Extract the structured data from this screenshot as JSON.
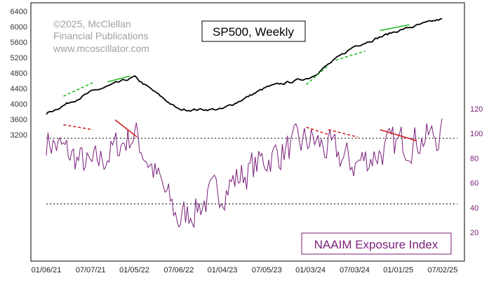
{
  "chart_data": [
    {
      "type": "line",
      "title": "SP500, Weekly",
      "axis": "left",
      "ylim": [
        3400,
        6400
      ],
      "y_ticks": [
        "6400",
        "6000",
        "5600",
        "5200",
        "4800",
        "4400",
        "4000",
        "3600",
        "3200"
      ],
      "color": "#000000",
      "x": [
        "01/06/21",
        "07/07/21",
        "01/05/22",
        "07/06/22",
        "01/04/23",
        "07/05/23",
        "01/03/24",
        "07/03/24",
        "01/01/25",
        "07/02/25"
      ],
      "values": [
        3750,
        4300,
        4690,
        3850,
        3860,
        4430,
        4690,
        5500,
        5900,
        6200
      ],
      "divergence_lines": [
        {
          "color": "#22bb22",
          "dashed": true,
          "from": [
            "03/2021",
            4200
          ],
          "to": [
            "07/2021",
            4550
          ]
        },
        {
          "color": "#22bb22",
          "dashed": false,
          "from": [
            "09/2021",
            4570
          ],
          "to": [
            "12/2021",
            4720
          ]
        },
        {
          "color": "#22bb22",
          "dashed": true,
          "from": [
            "12/2023",
            4500
          ],
          "to": [
            "03/2024",
            5000
          ]
        },
        {
          "color": "#22bb22",
          "dashed": true,
          "from": [
            "04/2024",
            5130
          ],
          "to": [
            "08/2024",
            5370
          ]
        },
        {
          "color": "#22bb22",
          "dashed": false,
          "from": [
            "10/2024",
            5900
          ],
          "to": [
            "02/2025",
            6050
          ]
        }
      ]
    },
    {
      "type": "line",
      "title": "NAAIM Exposure Index",
      "axis": "right",
      "ylim": [
        0,
        122
      ],
      "y_ticks": [
        "120",
        "100",
        "80",
        "60",
        "40",
        "20"
      ],
      "color": "#7a1f7a",
      "x": [
        "01/06/21",
        "07/07/21",
        "01/05/22",
        "07/06/22",
        "01/04/23",
        "07/05/23",
        "01/03/24",
        "07/03/24",
        "01/01/25",
        "07/02/25"
      ],
      "values": [
        95,
        72,
        100,
        30,
        55,
        80,
        95,
        75,
        92,
        99
      ],
      "reference_lines": [
        {
          "value": 96,
          "style": "dotted"
        },
        {
          "value": 43,
          "style": "dotted"
        }
      ],
      "divergence_lines": [
        {
          "color": "#cc2222",
          "dashed": true,
          "from": [
            "03/2021",
            107
          ],
          "to": [
            "07/2021",
            103
          ]
        },
        {
          "color": "#cc2222",
          "dashed": false,
          "from": [
            "10/2021",
            111
          ],
          "to": [
            "01/2022",
            97
          ]
        },
        {
          "color": "#cc2222",
          "dashed": true,
          "from": [
            "12/2023",
            105
          ],
          "to": [
            "03/2024",
            99
          ]
        },
        {
          "color": "#cc2222",
          "dashed": true,
          "from": [
            "03/2024",
            103
          ],
          "to": [
            "07/2024",
            97
          ]
        },
        {
          "color": "#cc2222",
          "dashed": false,
          "from": [
            "10/2024",
            103
          ],
          "to": [
            "03/2025",
            94
          ]
        }
      ]
    }
  ],
  "labels": {
    "copyright_1": "©2025, McClellan",
    "copyright_2": "Financial Publications",
    "copyright_3": "www.mcoscillator.com",
    "sp_title": "SP500, Weekly",
    "naaim_title": "NAAIM Exposure Index"
  },
  "colors": {
    "sp500": "#000000",
    "naaim": "#7a1f7a",
    "green_divergence": "#22bb22",
    "red_divergence": "#cc2222",
    "naaim_label_border": "#7a1f7a"
  }
}
